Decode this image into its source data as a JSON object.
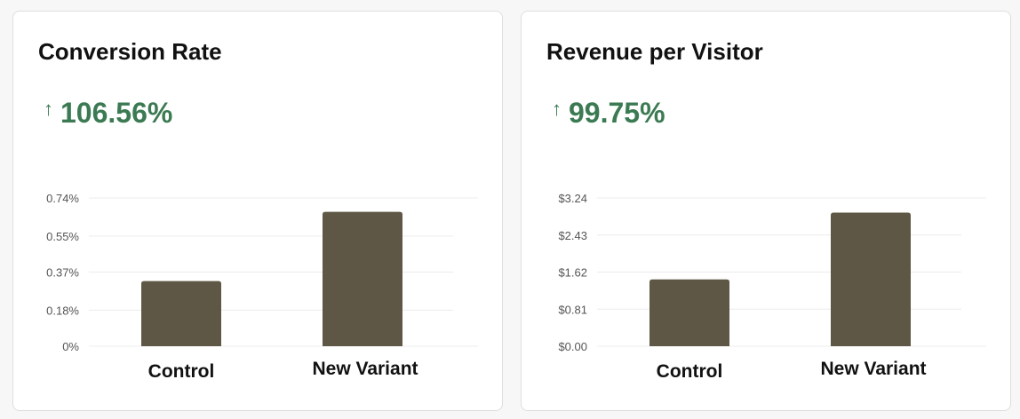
{
  "colors": {
    "bar": "#5f5745",
    "positive": "#3b7a52",
    "grid": "#ececec"
  },
  "cards": [
    {
      "title": "Conversion Rate",
      "delta": "106.56%",
      "delta_icon": "arrow-up-icon"
    },
    {
      "title": "Revenue per Visitor",
      "delta": "99.75%",
      "delta_icon": "arrow-up-icon"
    }
  ],
  "chart_data": [
    {
      "type": "bar",
      "title": "Conversion Rate",
      "categories": [
        "Control",
        "New Variant"
      ],
      "values": [
        0.325,
        0.671
      ],
      "ylim": [
        0,
        0.74
      ],
      "yticks": [
        0,
        0.18,
        0.37,
        0.55,
        0.74
      ],
      "ytick_labels": [
        "0%",
        "0.18%",
        "0.37%",
        "0.55%",
        "0.74%"
      ],
      "grid": true,
      "unit": "%"
    },
    {
      "type": "bar",
      "title": "Revenue per Visitor",
      "categories": [
        "Control",
        "New Variant"
      ],
      "values": [
        1.46,
        2.92
      ],
      "ylim": [
        0,
        3.24
      ],
      "yticks": [
        0,
        0.81,
        1.62,
        2.43,
        3.24
      ],
      "ytick_labels": [
        "$0.00",
        "$0.81",
        "$1.62",
        "$2.43",
        "$3.24"
      ],
      "grid": true,
      "unit": "$"
    }
  ]
}
